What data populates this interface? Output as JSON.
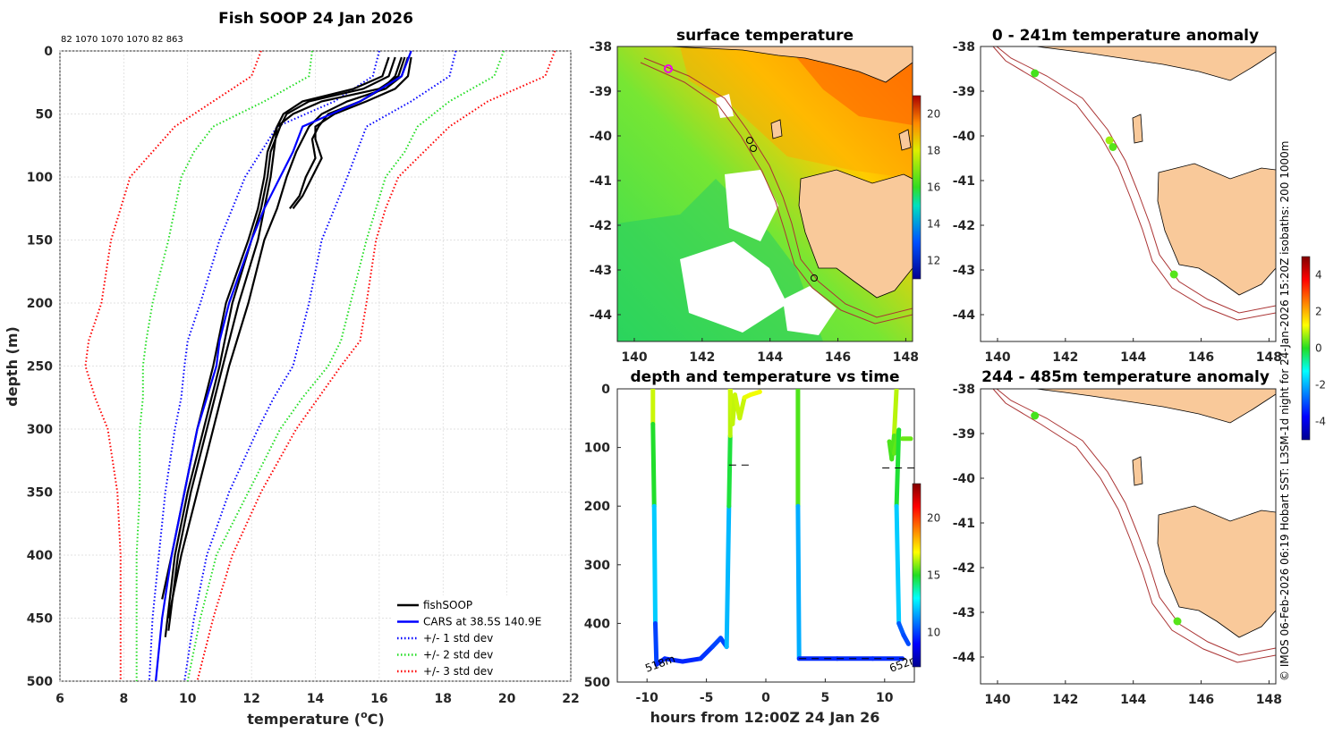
{
  "colors": {
    "fish": "#000000",
    "cars": "#0000ff",
    "std1": "#0000ff",
    "std2": "#22dd22",
    "std3": "#ff0000",
    "land": "#f9c99a",
    "isobath": "#aa3333",
    "grid": "#d9d9d9"
  },
  "chart_data": [
    {
      "id": "profile",
      "type": "line",
      "title": "Fish SOOP 24 Jan 2026",
      "profile_counts_label": "82 1070 1070 1070 82 863",
      "xlabel_main": "temperature (",
      "xlabel_sup": "o",
      "xlabel_end": "C)",
      "ylabel": "depth (m)",
      "xlim": [
        6,
        22
      ],
      "ylim": [
        0,
        500
      ],
      "y_reversed": true,
      "grid": true,
      "xticks": [
        "6",
        "8",
        "10",
        "12",
        "14",
        "16",
        "18",
        "20",
        "22"
      ],
      "yticks": [
        "0",
        "50",
        "100",
        "150",
        "200",
        "250",
        "300",
        "350",
        "400",
        "450",
        "500"
      ],
      "legend_position": "bottom-right",
      "legend": [
        {
          "label": "fishSOOP",
          "key": "fish",
          "style": "solid"
        },
        {
          "label": "CARS at 38.5S 140.9E",
          "key": "cars",
          "style": "solid"
        },
        {
          "label": "+/- 1 std dev",
          "key": "std1",
          "style": "dotted"
        },
        {
          "label": "+/- 2 std dev",
          "key": "std2",
          "style": "dotted"
        },
        {
          "label": "+/- 3 std dev",
          "key": "std3",
          "style": "dotted"
        }
      ],
      "depths": [
        0,
        20,
        40,
        60,
        80,
        100,
        125,
        150,
        200,
        230,
        250,
        275,
        300,
        350,
        400,
        450,
        500
      ],
      "cars": [
        17.0,
        16.7,
        15.4,
        13.6,
        13.3,
        12.9,
        12.4,
        12.0,
        11.3,
        11.0,
        10.9,
        10.6,
        10.3,
        9.9,
        9.5,
        9.2,
        9.0
      ],
      "std_bands": [
        {
          "key": "std1",
          "lower": [
            16.0,
            15.8,
            14.6,
            12.8,
            12.3,
            11.8,
            11.4,
            11.0,
            10.4,
            10.0,
            9.9,
            9.8,
            9.6,
            9.3,
            9.1,
            8.9,
            8.8
          ],
          "upper": [
            18.4,
            18.2,
            17.0,
            15.6,
            15.3,
            15.0,
            14.6,
            14.2,
            13.8,
            13.5,
            13.3,
            12.7,
            12.2,
            11.3,
            10.6,
            10.2,
            9.9
          ]
        },
        {
          "key": "std2",
          "lower": [
            13.9,
            13.8,
            12.4,
            10.8,
            10.2,
            9.8,
            9.6,
            9.4,
            8.9,
            8.7,
            8.6,
            8.6,
            8.5,
            8.5,
            8.4,
            8.4,
            8.4
          ],
          "upper": [
            19.9,
            19.6,
            18.2,
            17.2,
            16.8,
            16.2,
            15.9,
            15.6,
            15.1,
            14.8,
            14.4,
            13.6,
            12.9,
            11.9,
            10.9,
            10.4,
            10.0
          ]
        },
        {
          "key": "std3",
          "lower": [
            12.3,
            12.0,
            10.8,
            9.6,
            8.9,
            8.2,
            7.9,
            7.6,
            7.3,
            6.9,
            6.8,
            7.1,
            7.5,
            7.8,
            7.9,
            7.9,
            7.9
          ],
          "upper": [
            21.5,
            21.2,
            19.4,
            18.2,
            17.4,
            16.6,
            16.2,
            15.9,
            15.6,
            15.4,
            14.8,
            14.1,
            13.4,
            12.3,
            11.4,
            10.8,
            10.3
          ]
        }
      ],
      "fish_profiles": [
        {
          "depths": [
            5,
            20,
            30,
            40,
            50,
            60,
            80,
            100,
            125,
            150,
            200,
            250,
            300,
            350,
            400,
            435
          ],
          "temps": [
            16.8,
            16.6,
            16.0,
            14.2,
            13.3,
            12.8,
            12.5,
            12.4,
            12.2,
            11.9,
            11.2,
            10.8,
            10.3,
            9.9,
            9.5,
            9.2
          ]
        },
        {
          "depths": [
            5,
            20,
            30,
            40,
            50,
            60,
            80,
            100,
            125,
            150,
            200,
            250,
            300,
            350,
            400,
            465
          ],
          "temps": [
            16.5,
            16.3,
            15.5,
            13.8,
            13.1,
            12.9,
            12.6,
            12.5,
            12.3,
            12.0,
            11.4,
            11.0,
            10.5,
            10.0,
            9.6,
            9.3
          ]
        },
        {
          "depths": [
            5,
            20,
            30,
            40,
            50,
            60,
            80,
            100,
            125,
            150,
            200,
            250,
            300,
            350,
            400,
            460
          ],
          "temps": [
            16.3,
            16.1,
            15.2,
            13.6,
            13.0,
            12.8,
            12.7,
            12.6,
            12.4,
            12.2,
            11.6,
            11.1,
            10.6,
            10.1,
            9.7,
            9.4
          ]
        },
        {
          "depths": [
            5,
            20,
            30,
            40,
            50,
            60,
            80,
            100,
            125,
            150,
            200,
            250,
            300,
            350,
            400,
            450
          ],
          "temps": [
            16.9,
            16.7,
            16.2,
            15.0,
            14.2,
            13.8,
            13.4,
            13.1,
            12.8,
            12.4,
            11.9,
            11.3,
            10.8,
            10.3,
            9.8,
            9.4
          ]
        },
        {
          "depths": [
            5,
            20,
            30,
            40,
            50,
            60,
            70,
            85,
            100,
            115,
            125
          ],
          "temps": [
            17.0,
            16.9,
            16.5,
            15.6,
            14.6,
            14.0,
            14.0,
            14.2,
            13.9,
            13.6,
            13.3
          ]
        },
        {
          "depths": [
            5,
            20,
            30,
            40,
            50,
            60,
            70,
            85,
            100,
            115,
            125
          ],
          "temps": [
            16.7,
            16.5,
            16.1,
            15.4,
            14.4,
            14.1,
            13.9,
            14.0,
            13.7,
            13.5,
            13.2
          ]
        }
      ]
    },
    {
      "id": "sst_map",
      "type": "heatmap",
      "title": "surface temperature",
      "xlim": [
        139.5,
        148.2
      ],
      "ylim": [
        -44.6,
        -38
      ],
      "xticks": [
        "140",
        "142",
        "144",
        "146",
        "148"
      ],
      "yticks": [
        "-38",
        "-39",
        "-40",
        "-41",
        "-42",
        "-43",
        "-44"
      ],
      "colorbar_ticks": [
        "12",
        "14",
        "16",
        "18",
        "20"
      ],
      "colorbar_range": [
        11,
        21
      ]
    },
    {
      "id": "depth_time",
      "type": "scatter",
      "title": "depth and temperature vs time",
      "xlabel": "hours from 12:00Z 24 Jan 26",
      "xlim": [
        -12.5,
        12.5
      ],
      "ylim": [
        0,
        500
      ],
      "xticks": [
        "-10",
        "-5",
        "0",
        "5",
        "10"
      ],
      "yticks": [
        "0",
        "100",
        "200",
        "300",
        "400",
        "500"
      ],
      "colorbar_ticks": [
        "10",
        "15",
        "20"
      ],
      "colorbar_range": [
        7,
        23
      ],
      "annotations": [
        "518m",
        "652m"
      ]
    },
    {
      "id": "anomaly_shallow",
      "type": "scatter",
      "title": "0 - 241m temperature anomaly",
      "xticks": [
        "140",
        "142",
        "144",
        "146",
        "148"
      ],
      "yticks": [
        "-38",
        "-39",
        "-40",
        "-41",
        "-42",
        "-43",
        "-44"
      ],
      "points": [
        {
          "lon": 141.1,
          "lat": -38.6,
          "anom": 0.2
        },
        {
          "lon": 143.3,
          "lat": -40.1,
          "anom": 0.7
        },
        {
          "lon": 143.4,
          "lat": -40.25,
          "anom": 0.3
        },
        {
          "lon": 145.2,
          "lat": -43.1,
          "anom": 0.3
        }
      ]
    },
    {
      "id": "anomaly_deep",
      "type": "scatter",
      "title": "244 - 485m temperature anomaly",
      "xticks": [
        "140",
        "142",
        "144",
        "146",
        "148"
      ],
      "yticks": [
        "-38",
        "-39",
        "-40",
        "-41",
        "-42",
        "-43",
        "-44"
      ],
      "points": [
        {
          "lon": 141.1,
          "lat": -38.6,
          "anom": 0.2
        },
        {
          "lon": 145.3,
          "lat": -43.2,
          "anom": 0.3
        }
      ],
      "colorbar_ticks": [
        "-4",
        "-2",
        "0",
        "2",
        "4"
      ],
      "colorbar_range": [
        -5,
        5
      ]
    }
  ],
  "credit": "© IMOS 06-Feb-2026 06:19 Hobart SST: L3SM-1d night for 24-Jan-2026 15:20Z isobaths: 200  1000m"
}
